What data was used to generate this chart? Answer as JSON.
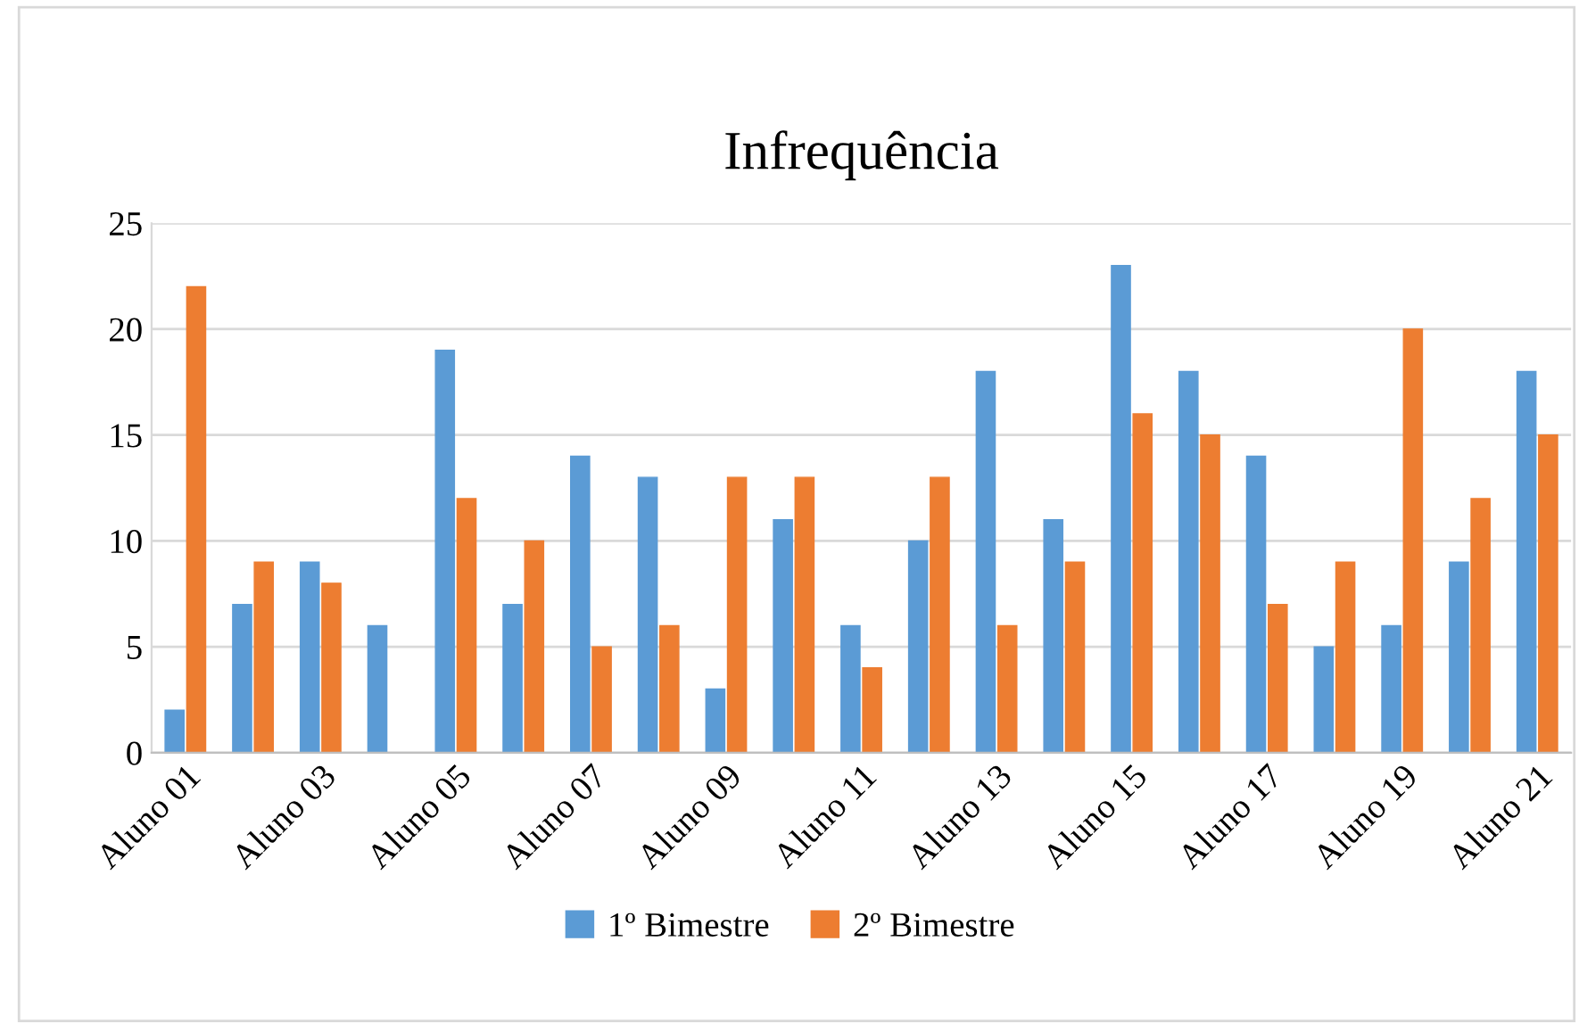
{
  "chart_data": {
    "type": "bar",
    "title": "Infrequência",
    "categories": [
      "Aluno 01",
      null,
      "Aluno 03",
      null,
      "Aluno 05",
      null,
      "Aluno 07",
      null,
      "Aluno 09",
      null,
      "Aluno 11",
      null,
      "Aluno 13",
      null,
      "Aluno 15",
      null,
      "Aluno 17",
      null,
      "Aluno 19",
      null,
      "Aluno 21"
    ],
    "series": [
      {
        "name": "1º Bimestre",
        "color": "#5b9bd5",
        "values": [
          2,
          7,
          9,
          6,
          19,
          7,
          14,
          13,
          3,
          11,
          6,
          10,
          18,
          11,
          23,
          18,
          14,
          5,
          6,
          9,
          18
        ]
      },
      {
        "name": "2º Bimestre",
        "color": "#ed7d31",
        "values": [
          22,
          9,
          8,
          0,
          12,
          10,
          5,
          6,
          13,
          13,
          4,
          13,
          6,
          9,
          16,
          15,
          7,
          9,
          20,
          12,
          15
        ]
      }
    ],
    "ylim": [
      0,
      25
    ],
    "yticks": [
      0,
      5,
      10,
      15,
      20,
      25
    ],
    "grid": "y",
    "legend": "bottom"
  }
}
